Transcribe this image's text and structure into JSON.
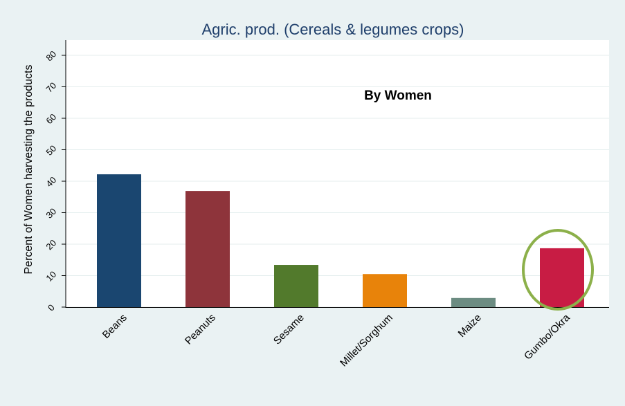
{
  "chart_data": {
    "type": "bar",
    "title": "Agric. prod. (Cereals & legumes crops)",
    "y_label": "Percent of Women harvesting the products",
    "annotation": "By Women",
    "categories": [
      "Beans",
      "Peanuts",
      "Sesame",
      "Millet/Sorghum",
      "Maize",
      "Gumbo/Okra"
    ],
    "values": [
      42.2,
      36.9,
      13.4,
      10.5,
      2.9,
      18.7
    ],
    "colors": [
      "#1a4670",
      "#8e343b",
      "#527a2c",
      "#e8830a",
      "#6c8c82",
      "#c81c44"
    ],
    "ylim": [
      0,
      80
    ],
    "yticks": [
      0,
      10,
      20,
      30,
      40,
      50,
      60,
      70,
      80
    ],
    "grid": true
  }
}
